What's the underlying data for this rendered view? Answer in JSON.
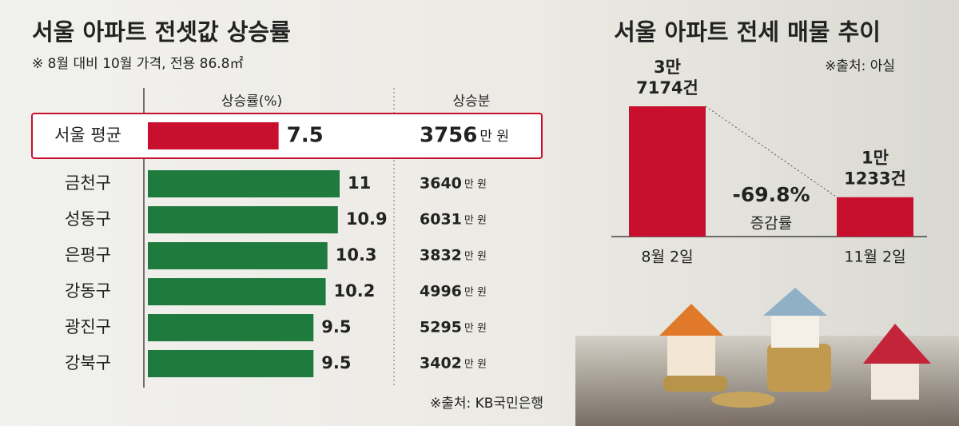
{
  "chart_data": [
    {
      "type": "hbar",
      "title": "서울 아파트 전셋값 상승률",
      "subtitle": "※ 8월 대비 10월 가격, 전용 86.8㎡",
      "value_header": "상승률(%)",
      "increase_header": "상승분",
      "categories": [
        "서울 평균",
        "금천구",
        "성동구",
        "은평구",
        "강동구",
        "광진구",
        "강북구"
      ],
      "values": [
        7.5,
        11,
        10.9,
        10.3,
        10.2,
        9.5,
        9.5
      ],
      "increases": [
        3756,
        3640,
        6031,
        3832,
        4996,
        5295,
        3402
      ],
      "increase_unit": "만 원",
      "highlight_color": "#c8102e",
      "color": "#1f7a3e",
      "source": "※출처: KB국민은행"
    },
    {
      "type": "bar",
      "title": "서울 아파트 전세 매물 추이",
      "source": "※출처: 아실",
      "categories": [
        "8월 2일",
        "11월 2일"
      ],
      "values": [
        37174,
        11233
      ],
      "value_labels": [
        [
          "3만",
          "7174건"
        ],
        [
          "1만",
          "1233건"
        ]
      ],
      "color": "#c8102e",
      "annotation": {
        "text": "-69.8%",
        "label": "증감률"
      }
    }
  ]
}
